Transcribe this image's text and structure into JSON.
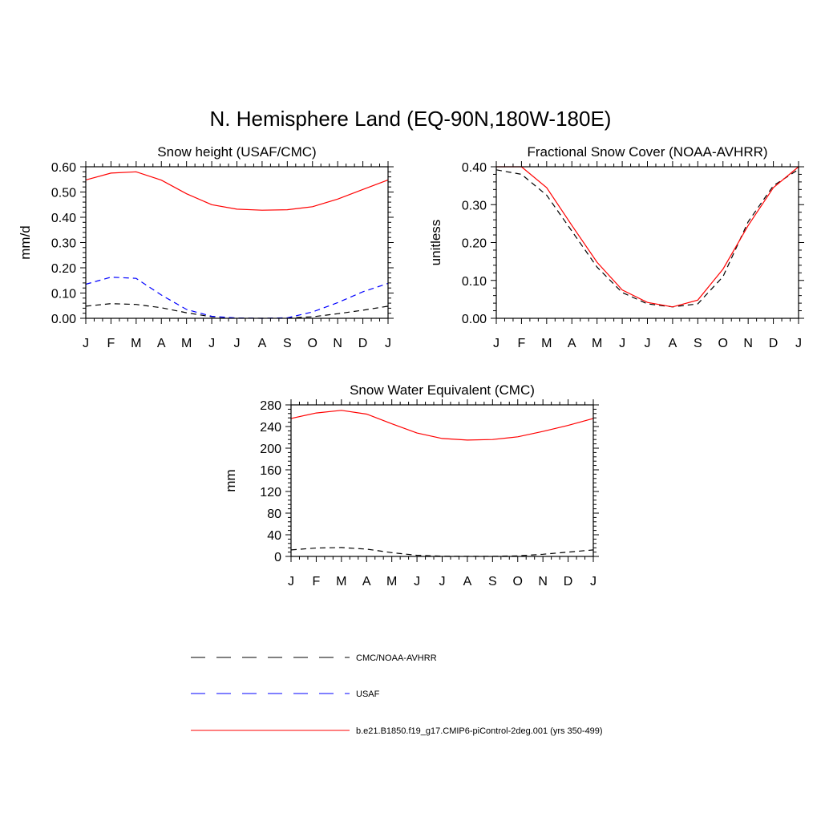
{
  "figure": {
    "title": "N. Hemisphere Land (EQ-90N,180W-180E)"
  },
  "colors": {
    "obs": "#000000",
    "usaf": "#0000ff",
    "model": "#ff0000"
  },
  "months": [
    "J",
    "F",
    "M",
    "A",
    "M",
    "J",
    "J",
    "A",
    "S",
    "O",
    "N",
    "D",
    "J"
  ],
  "chart_data": [
    {
      "type": "line",
      "title": "Snow height (USAF/CMC)",
      "xlabel": "",
      "ylabel": "mm/d",
      "ylim": [
        0,
        0.6
      ],
      "yticks": [
        0,
        0.1,
        0.2,
        0.3,
        0.4,
        0.5,
        0.6
      ],
      "ytick_labels": [
        "0.00",
        "0.10",
        "0.20",
        "0.30",
        "0.40",
        "0.50",
        "0.60"
      ],
      "series": [
        {
          "name": "CMC/NOAA-AVHRR",
          "style": "dash",
          "color": "#000000",
          "values": [
            0.048,
            0.058,
            0.055,
            0.042,
            0.022,
            0.006,
            0.001,
            0.0,
            0.001,
            0.006,
            0.018,
            0.032,
            0.048
          ]
        },
        {
          "name": "USAF",
          "style": "dash",
          "color": "#0000ff",
          "values": [
            0.135,
            0.163,
            0.158,
            0.092,
            0.035,
            0.008,
            0.001,
            0.0,
            0.002,
            0.025,
            0.062,
            0.105,
            0.138
          ]
        },
        {
          "name": "b.e21.B1850.f19_g17.CMIP6-piControl-2deg.001 (yrs 350-499)",
          "style": "solid",
          "color": "#ff0000",
          "values": [
            0.548,
            0.575,
            0.58,
            0.547,
            0.493,
            0.45,
            0.432,
            0.428,
            0.43,
            0.442,
            0.472,
            0.51,
            0.548
          ]
        }
      ]
    },
    {
      "type": "line",
      "title": "Fractional Snow Cover (NOAA-AVHRR)",
      "xlabel": "",
      "ylabel": "unitless",
      "ylim": [
        0,
        0.4
      ],
      "yticks": [
        0,
        0.1,
        0.2,
        0.3,
        0.4
      ],
      "ytick_labels": [
        "0.00",
        "0.10",
        "0.20",
        "0.30",
        "0.40"
      ],
      "series": [
        {
          "name": "CMC/NOAA-AVHRR",
          "style": "dash",
          "color": "#000000",
          "values": [
            0.392,
            0.38,
            0.325,
            0.23,
            0.135,
            0.068,
            0.038,
            0.03,
            0.038,
            0.11,
            0.255,
            0.35,
            0.393
          ]
        },
        {
          "name": "b.e21.B1850.f19_g17.CMIP6-piControl-2deg.001 (yrs 350-499)",
          "style": "solid",
          "color": "#ff0000",
          "values": [
            0.4,
            0.4,
            0.345,
            0.245,
            0.148,
            0.075,
            0.042,
            0.03,
            0.048,
            0.13,
            0.245,
            0.345,
            0.4
          ]
        }
      ]
    },
    {
      "type": "line",
      "title": "Snow Water Equivalent (CMC)",
      "xlabel": "",
      "ylabel": "mm",
      "ylim": [
        0,
        280
      ],
      "yticks": [
        0,
        40,
        80,
        120,
        160,
        200,
        240,
        280
      ],
      "ytick_labels": [
        "0",
        "40",
        "80",
        "120",
        "160",
        "200",
        "240",
        "280"
      ],
      "series": [
        {
          "name": "CMC/NOAA-AVHRR",
          "style": "dash",
          "color": "#000000",
          "values": [
            12,
            15.5,
            16.5,
            13.5,
            7,
            2,
            0.5,
            0.2,
            0.3,
            1,
            4,
            8,
            12
          ]
        },
        {
          "name": "b.e21.B1850.f19_g17.CMIP6-piControl-2deg.001 (yrs 350-499)",
          "style": "solid",
          "color": "#ff0000",
          "values": [
            255,
            265,
            270,
            263,
            245,
            228,
            218,
            215,
            216,
            221,
            231,
            242,
            255
          ]
        }
      ]
    }
  ],
  "legend": [
    {
      "label": "CMC/NOAA-AVHRR",
      "style": "dash",
      "color": "#000000"
    },
    {
      "label": "USAF",
      "style": "dash",
      "color": "#0000ff"
    },
    {
      "label": "b.e21.B1850.f19_g17.CMIP6-piControl-2deg.001 (yrs 350-499)",
      "style": "solid",
      "color": "#ff0000"
    }
  ]
}
